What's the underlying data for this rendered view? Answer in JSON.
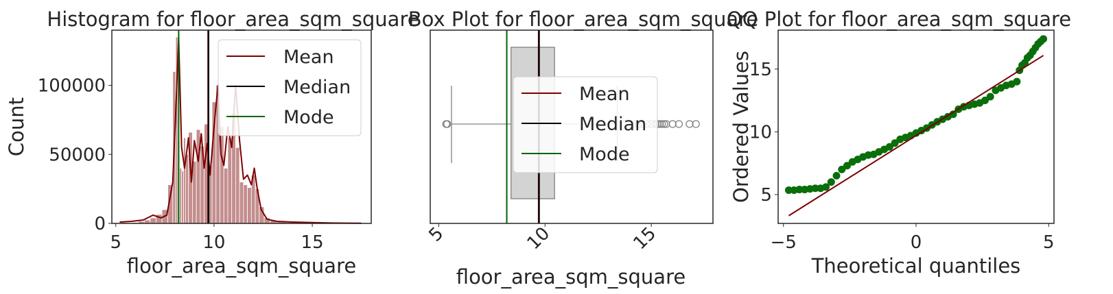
{
  "colors": {
    "mean": "#7b0000",
    "median": "#000000",
    "mode": "#006400",
    "hist_bar": "#c48e8e",
    "kde": "#7b0000",
    "box_fill": "#d3d3d3",
    "box_edge": "#808080",
    "qq_points": "#0a6e0a",
    "qq_line": "#7b0000"
  },
  "legend": {
    "mean": "Mean",
    "median": "Median",
    "mode": "Mode"
  },
  "chart_data": [
    {
      "type": "bar",
      "title": "Histogram for floor_area_sqm_square",
      "xlabel": "floor_area_sqm_square",
      "ylabel": "Count",
      "xlim": [
        4.8,
        18.0
      ],
      "ylim": [
        0,
        140000
      ],
      "xticks": [
        5,
        10,
        15
      ],
      "yticks": [
        0,
        50000,
        100000
      ],
      "grid": false,
      "legend_position": "top-right",
      "bins": {
        "x": [
          5.4,
          5.7,
          6.0,
          6.3,
          6.6,
          6.9,
          7.2,
          7.5,
          7.8,
          8.0,
          8.1,
          8.2,
          8.3,
          8.4,
          8.5,
          8.6,
          8.8,
          9.0,
          9.2,
          9.4,
          9.6,
          9.8,
          10.0,
          10.2,
          10.4,
          10.6,
          10.8,
          11.0,
          11.2,
          11.4,
          11.6,
          11.8,
          12.0,
          12.2,
          12.4,
          12.7,
          13.0,
          13.4,
          14.0,
          15.0,
          16.0,
          17.0
        ],
        "counts": [
          600,
          500,
          700,
          1500,
          2500,
          4000,
          6500,
          10000,
          28000,
          110000,
          135000,
          60000,
          40000,
          38000,
          62000,
          50000,
          66000,
          45000,
          68000,
          56000,
          72000,
          42000,
          88000,
          100000,
          70000,
          40000,
          62000,
          80000,
          55000,
          30000,
          28000,
          26000,
          35000,
          25000,
          12000,
          4000,
          2000,
          1500,
          800,
          400,
          200,
          100
        ]
      },
      "kde": {
        "x": [
          5.2,
          5.8,
          6.4,
          6.9,
          7.3,
          7.6,
          7.9,
          8.05,
          8.2,
          8.35,
          8.5,
          8.7,
          8.85,
          9.0,
          9.2,
          9.35,
          9.5,
          9.65,
          9.8,
          10.0,
          10.2,
          10.35,
          10.5,
          10.7,
          10.9,
          11.1,
          11.3,
          11.5,
          11.7,
          11.9,
          12.05,
          12.2,
          12.4,
          12.7,
          13.2,
          14.0,
          15.0,
          16.0,
          17.5
        ],
        "y": [
          1000,
          1500,
          2500,
          6000,
          4000,
          6000,
          30000,
          80000,
          135000,
          55000,
          40000,
          62000,
          30000,
          60000,
          45000,
          65000,
          40000,
          58000,
          35000,
          70000,
          100000,
          50000,
          42000,
          70000,
          55000,
          100000,
          60000,
          32000,
          35000,
          28000,
          40000,
          25000,
          10000,
          3000,
          1500,
          1000,
          600,
          300,
          100
        ]
      },
      "mean": 9.7,
      "median": 9.72,
      "mode": 8.2
    },
    {
      "type": "box",
      "title": "Box Plot for floor_area_sqm_square",
      "xlabel": "floor_area_sqm_square",
      "xlim": [
        4.6,
        17.9
      ],
      "xticks": [
        5,
        10,
        15
      ],
      "q1": 8.4,
      "median": 9.72,
      "q3": 10.45,
      "whisker_low": 5.6,
      "whisker_high": 13.4,
      "mean": 9.7,
      "mode": 8.2,
      "outliers": [
        5.35,
        5.4,
        13.8,
        14.0,
        14.2,
        14.4,
        14.6,
        14.8,
        15.0,
        15.2,
        15.3,
        15.4,
        15.5,
        15.6,
        15.7,
        16.0,
        16.3,
        16.8,
        17.1
      ],
      "legend_position": "center"
    },
    {
      "type": "scatter",
      "title": "QQ Plot for floor_area_sqm_square",
      "xlabel": "Theoretical quantiles",
      "ylabel": "Ordered Values",
      "xlim": [
        -5.2,
        5.2
      ],
      "ylim": [
        2.7,
        18.1
      ],
      "xticks": [
        -5,
        0,
        5
      ],
      "yticks": [
        5,
        10,
        15
      ],
      "points": {
        "x": [
          -4.8,
          -4.6,
          -4.4,
          -4.2,
          -4.0,
          -3.8,
          -3.6,
          -3.4,
          -3.2,
          -3.0,
          -2.8,
          -2.6,
          -2.4,
          -2.2,
          -2.0,
          -1.8,
          -1.6,
          -1.4,
          -1.2,
          -1.0,
          -0.8,
          -0.6,
          -0.4,
          -0.2,
          0.0,
          0.2,
          0.4,
          0.6,
          0.8,
          1.0,
          1.2,
          1.4,
          1.6,
          1.8,
          2.0,
          2.2,
          2.4,
          2.6,
          2.8,
          3.0,
          3.2,
          3.4,
          3.6,
          3.8,
          3.9,
          4.0,
          4.1,
          4.2,
          4.3,
          4.4,
          4.5,
          4.6,
          4.7,
          4.8
        ],
        "y": [
          5.35,
          5.35,
          5.4,
          5.4,
          5.45,
          5.5,
          5.5,
          5.6,
          6.0,
          6.5,
          7.0,
          7.3,
          7.6,
          7.8,
          8.0,
          8.15,
          8.2,
          8.4,
          8.6,
          8.8,
          9.1,
          9.4,
          9.55,
          9.7,
          9.9,
          10.1,
          10.3,
          10.55,
          10.8,
          11.0,
          11.2,
          11.4,
          11.8,
          12.0,
          12.1,
          12.2,
          12.3,
          12.5,
          12.8,
          13.3,
          13.5,
          13.7,
          13.8,
          14.0,
          14.9,
          15.3,
          15.5,
          15.9,
          16.1,
          16.4,
          16.7,
          17.0,
          17.2,
          17.4
        ]
      },
      "fit_line": {
        "slope": 1.33,
        "intercept": 9.7,
        "x_range": [
          -4.8,
          4.8
        ]
      }
    }
  ]
}
